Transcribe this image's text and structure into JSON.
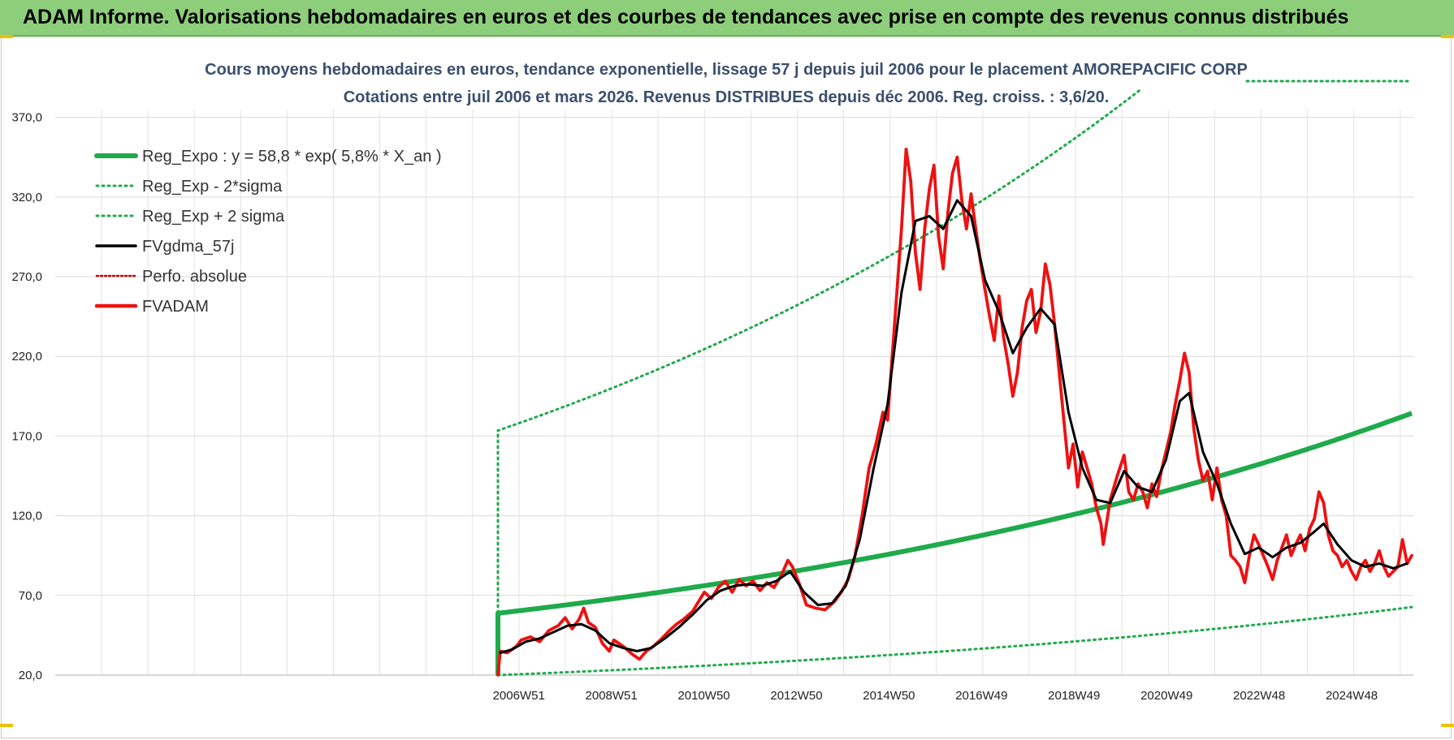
{
  "header": {
    "title": "ADAM Informe. Valorisations hebdomadaires en euros et des courbes de tendances avec prise en compte des revenus connus distribués"
  },
  "colors": {
    "banner": "#8dce7b",
    "reg_expo": "#1faa4b",
    "sigma": "#1faa4b",
    "fvgdma": "#000000",
    "fvadam": "#ee1111",
    "perfo": "#cc0000",
    "title": "#3b4f6e"
  },
  "chart_data": {
    "type": "line",
    "title": "Cours moyens hebdomadaires en euros, tendance exponentielle, lissage 57 j depuis juil 2006 pour le placement AMOREPACIFIC CORP",
    "subtitle": "Cotations entre juil 2006 et mars 2026. Revenus DISTRIBUES depuis déc 2006. Reg. croiss. : 3,6/20.",
    "xlabel": "",
    "ylabel": "",
    "ylim": [
      20,
      370
    ],
    "yticks": [
      "20,0",
      "70,0",
      "120,0",
      "170,0",
      "220,0",
      "270,0",
      "320,0",
      "370,0"
    ],
    "xticks": [
      "2006W51",
      "2008W51",
      "2010W50",
      "2012W50",
      "2014W50",
      "2016W49",
      "2018W49",
      "2020W49",
      "2022W48",
      "2024W48"
    ],
    "xlim": [
      2006.5,
      2026.2
    ],
    "grid": true,
    "legend_position": "top-left",
    "legend": [
      {
        "key": "reg_expo",
        "label": "Reg_Expo : y = 58,8 * exp( 5,8% *  X_an )",
        "style": "solid-thick"
      },
      {
        "key": "sigma_low",
        "label": "Reg_Exp - 2*sigma",
        "style": "dotted"
      },
      {
        "key": "sigma_high",
        "label": "Reg_Exp + 2 sigma",
        "style": "dotted"
      },
      {
        "key": "fvgdma",
        "label": "FVgdma_57j",
        "style": "solid"
      },
      {
        "key": "perfo",
        "label": "Perfo. absolue",
        "style": "dotted"
      },
      {
        "key": "fvadam",
        "label": "FVADAM",
        "style": "solid-thick"
      }
    ],
    "regression": {
      "a": 58.8,
      "rate": 0.058,
      "sigma_factor_high": 2.95,
      "sigma_factor_low": 0.34
    },
    "series": [
      {
        "name": "FVADAM",
        "key": "fvadam",
        "points": [
          [
            2006.5,
            20
          ],
          [
            2006.55,
            35
          ],
          [
            2006.7,
            34
          ],
          [
            2006.9,
            38
          ],
          [
            2007.0,
            42
          ],
          [
            2007.2,
            44
          ],
          [
            2007.4,
            41
          ],
          [
            2007.6,
            48
          ],
          [
            2007.8,
            51
          ],
          [
            2007.95,
            56
          ],
          [
            2008.1,
            49
          ],
          [
            2008.25,
            55
          ],
          [
            2008.35,
            62
          ],
          [
            2008.45,
            53
          ],
          [
            2008.6,
            50
          ],
          [
            2008.75,
            40
          ],
          [
            2008.9,
            35
          ],
          [
            2009.0,
            42
          ],
          [
            2009.2,
            38
          ],
          [
            2009.4,
            33
          ],
          [
            2009.55,
            30
          ],
          [
            2009.7,
            35
          ],
          [
            2009.85,
            38
          ],
          [
            2010.0,
            42
          ],
          [
            2010.2,
            48
          ],
          [
            2010.35,
            52
          ],
          [
            2010.5,
            55
          ],
          [
            2010.7,
            60
          ],
          [
            2010.8,
            65
          ],
          [
            2010.95,
            72
          ],
          [
            2011.1,
            68
          ],
          [
            2011.25,
            75
          ],
          [
            2011.4,
            79
          ],
          [
            2011.55,
            72
          ],
          [
            2011.7,
            80
          ],
          [
            2011.85,
            76
          ],
          [
            2012.0,
            79
          ],
          [
            2012.15,
            73
          ],
          [
            2012.3,
            78
          ],
          [
            2012.45,
            75
          ],
          [
            2012.6,
            82
          ],
          [
            2012.75,
            92
          ],
          [
            2012.85,
            88
          ],
          [
            2013.0,
            77
          ],
          [
            2013.15,
            64
          ],
          [
            2013.35,
            62
          ],
          [
            2013.55,
            61
          ],
          [
            2013.75,
            66
          ],
          [
            2013.9,
            72
          ],
          [
            2014.05,
            80
          ],
          [
            2014.2,
            95
          ],
          [
            2014.35,
            120
          ],
          [
            2014.5,
            150
          ],
          [
            2014.65,
            165
          ],
          [
            2014.8,
            185
          ],
          [
            2014.9,
            180
          ],
          [
            2015.0,
            220
          ],
          [
            2015.1,
            260
          ],
          [
            2015.2,
            300
          ],
          [
            2015.3,
            350
          ],
          [
            2015.4,
            330
          ],
          [
            2015.5,
            285
          ],
          [
            2015.6,
            262
          ],
          [
            2015.7,
            300
          ],
          [
            2015.8,
            325
          ],
          [
            2015.9,
            340
          ],
          [
            2016.0,
            295
          ],
          [
            2016.1,
            275
          ],
          [
            2016.2,
            310
          ],
          [
            2016.3,
            335
          ],
          [
            2016.4,
            345
          ],
          [
            2016.5,
            318
          ],
          [
            2016.6,
            300
          ],
          [
            2016.7,
            322
          ],
          [
            2016.8,
            300
          ],
          [
            2016.9,
            280
          ],
          [
            2017.0,
            262
          ],
          [
            2017.1,
            245
          ],
          [
            2017.2,
            230
          ],
          [
            2017.3,
            258
          ],
          [
            2017.4,
            232
          ],
          [
            2017.5,
            215
          ],
          [
            2017.6,
            195
          ],
          [
            2017.7,
            210
          ],
          [
            2017.8,
            238
          ],
          [
            2017.9,
            255
          ],
          [
            2018.0,
            262
          ],
          [
            2018.1,
            235
          ],
          [
            2018.2,
            248
          ],
          [
            2018.3,
            278
          ],
          [
            2018.4,
            265
          ],
          [
            2018.5,
            240
          ],
          [
            2018.6,
            210
          ],
          [
            2018.7,
            180
          ],
          [
            2018.8,
            150
          ],
          [
            2018.9,
            165
          ],
          [
            2019.0,
            138
          ],
          [
            2019.1,
            160
          ],
          [
            2019.2,
            150
          ],
          [
            2019.3,
            140
          ],
          [
            2019.4,
            125
          ],
          [
            2019.5,
            115
          ],
          [
            2019.55,
            102
          ],
          [
            2019.7,
            130
          ],
          [
            2019.85,
            145
          ],
          [
            2020.0,
            158
          ],
          [
            2020.1,
            135
          ],
          [
            2020.2,
            130
          ],
          [
            2020.3,
            140
          ],
          [
            2020.4,
            135
          ],
          [
            2020.5,
            125
          ],
          [
            2020.6,
            140
          ],
          [
            2020.7,
            132
          ],
          [
            2020.8,
            148
          ],
          [
            2020.9,
            160
          ],
          [
            2021.0,
            172
          ],
          [
            2021.1,
            190
          ],
          [
            2021.2,
            205
          ],
          [
            2021.3,
            222
          ],
          [
            2021.4,
            210
          ],
          [
            2021.5,
            175
          ],
          [
            2021.6,
            155
          ],
          [
            2021.7,
            142
          ],
          [
            2021.8,
            148
          ],
          [
            2021.9,
            130
          ],
          [
            2022.0,
            150
          ],
          [
            2022.1,
            130
          ],
          [
            2022.2,
            120
          ],
          [
            2022.3,
            95
          ],
          [
            2022.4,
            92
          ],
          [
            2022.5,
            88
          ],
          [
            2022.6,
            78
          ],
          [
            2022.7,
            95
          ],
          [
            2022.8,
            108
          ],
          [
            2022.9,
            102
          ],
          [
            2023.0,
            95
          ],
          [
            2023.1,
            88
          ],
          [
            2023.2,
            80
          ],
          [
            2023.3,
            92
          ],
          [
            2023.4,
            100
          ],
          [
            2023.5,
            108
          ],
          [
            2023.6,
            95
          ],
          [
            2023.7,
            102
          ],
          [
            2023.8,
            108
          ],
          [
            2023.9,
            98
          ],
          [
            2024.0,
            112
          ],
          [
            2024.1,
            118
          ],
          [
            2024.2,
            135
          ],
          [
            2024.3,
            128
          ],
          [
            2024.4,
            108
          ],
          [
            2024.5,
            98
          ],
          [
            2024.6,
            95
          ],
          [
            2024.7,
            88
          ],
          [
            2024.8,
            92
          ],
          [
            2024.9,
            85
          ],
          [
            2025.0,
            80
          ],
          [
            2025.1,
            88
          ],
          [
            2025.2,
            92
          ],
          [
            2025.3,
            85
          ],
          [
            2025.4,
            90
          ],
          [
            2025.5,
            98
          ],
          [
            2025.6,
            88
          ],
          [
            2025.7,
            82
          ],
          [
            2025.8,
            85
          ],
          [
            2025.9,
            88
          ],
          [
            2026.0,
            105
          ],
          [
            2026.1,
            90
          ],
          [
            2026.2,
            95
          ]
        ]
      },
      {
        "name": "FVgdma_57j",
        "key": "fvgdma",
        "points": [
          [
            2006.55,
            34
          ],
          [
            2006.8,
            36
          ],
          [
            2007.1,
            41
          ],
          [
            2007.4,
            43
          ],
          [
            2007.7,
            47
          ],
          [
            2008.0,
            51
          ],
          [
            2008.3,
            52
          ],
          [
            2008.6,
            48
          ],
          [
            2008.9,
            40
          ],
          [
            2009.2,
            37
          ],
          [
            2009.5,
            35
          ],
          [
            2009.8,
            37
          ],
          [
            2010.1,
            43
          ],
          [
            2010.4,
            50
          ],
          [
            2010.7,
            58
          ],
          [
            2011.0,
            67
          ],
          [
            2011.3,
            73
          ],
          [
            2011.6,
            76
          ],
          [
            2011.9,
            77
          ],
          [
            2012.2,
            76
          ],
          [
            2012.5,
            79
          ],
          [
            2012.8,
            85
          ],
          [
            2013.1,
            72
          ],
          [
            2013.4,
            64
          ],
          [
            2013.7,
            65
          ],
          [
            2014.0,
            76
          ],
          [
            2014.3,
            105
          ],
          [
            2014.6,
            150
          ],
          [
            2014.9,
            190
          ],
          [
            2015.2,
            260
          ],
          [
            2015.5,
            305
          ],
          [
            2015.8,
            308
          ],
          [
            2016.1,
            300
          ],
          [
            2016.4,
            318
          ],
          [
            2016.7,
            308
          ],
          [
            2017.0,
            268
          ],
          [
            2017.3,
            248
          ],
          [
            2017.6,
            222
          ],
          [
            2017.9,
            238
          ],
          [
            2018.2,
            250
          ],
          [
            2018.5,
            240
          ],
          [
            2018.8,
            185
          ],
          [
            2019.1,
            150
          ],
          [
            2019.4,
            130
          ],
          [
            2019.7,
            128
          ],
          [
            2020.0,
            148
          ],
          [
            2020.3,
            138
          ],
          [
            2020.6,
            135
          ],
          [
            2020.9,
            155
          ],
          [
            2021.2,
            192
          ],
          [
            2021.4,
            197
          ],
          [
            2021.7,
            160
          ],
          [
            2022.0,
            140
          ],
          [
            2022.3,
            115
          ],
          [
            2022.6,
            96
          ],
          [
            2022.9,
            100
          ],
          [
            2023.2,
            94
          ],
          [
            2023.5,
            100
          ],
          [
            2023.8,
            103
          ],
          [
            2024.1,
            110
          ],
          [
            2024.3,
            115
          ],
          [
            2024.6,
            102
          ],
          [
            2024.9,
            92
          ],
          [
            2025.2,
            88
          ],
          [
            2025.5,
            90
          ],
          [
            2025.8,
            87
          ],
          [
            2026.1,
            90
          ]
        ]
      }
    ]
  }
}
